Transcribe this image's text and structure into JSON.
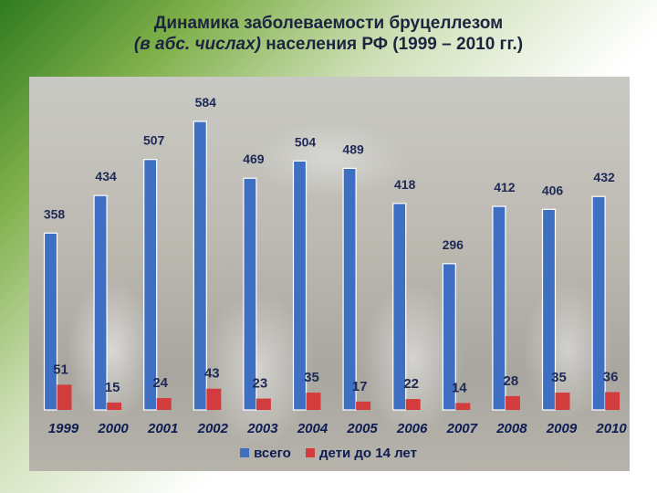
{
  "title_line1": "Динамика заболеваемости бруцеллезом",
  "title_italic": "(в абс. числах)",
  "title_rest": " населения РФ (1999 – 2010 гг.)",
  "colors": {
    "total": "#3f6fc2",
    "kids": "#d23c3c"
  },
  "chart_data": {
    "type": "bar",
    "categories": [
      "1999",
      "2000",
      "2001",
      "2002",
      "2003",
      "2004",
      "2005",
      "2006",
      "2007",
      "2008",
      "2009",
      "2010"
    ],
    "series": [
      {
        "name": "всего",
        "values": [
          358,
          434,
          507,
          584,
          469,
          504,
          489,
          418,
          296,
          412,
          406,
          432
        ]
      },
      {
        "name": "дети до 14 лет",
        "values": [
          51,
          15,
          24,
          43,
          23,
          35,
          17,
          22,
          14,
          28,
          35,
          36
        ]
      }
    ],
    "ylim": [
      0,
      584
    ],
    "grid": false,
    "legend_position": "bottom"
  }
}
